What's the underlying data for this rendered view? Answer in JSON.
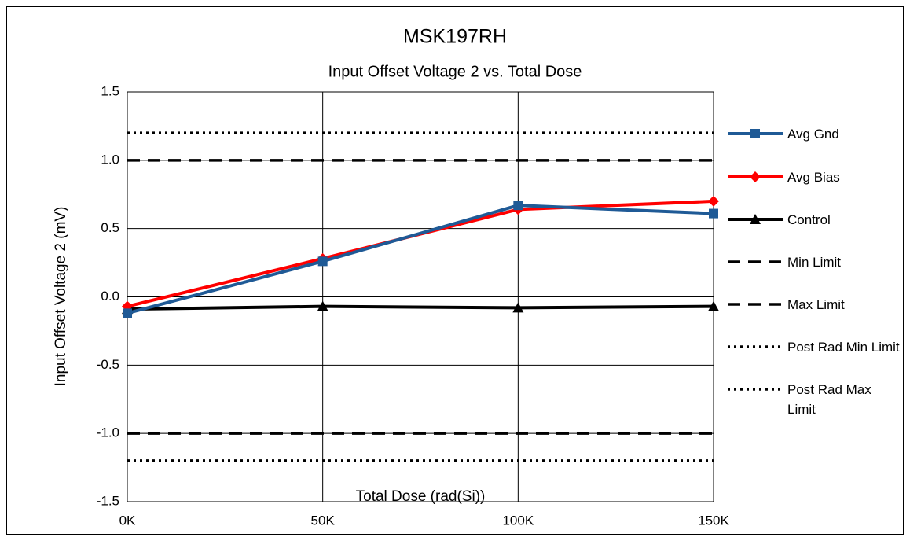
{
  "chart_data": {
    "type": "line",
    "title": "MSK197RH",
    "subtitle": "Input Offset Voltage 2 vs. Total Dose",
    "x_label": "Total Dose (rad(Si))",
    "y_label": "Input Offset Voltage 2 (mV)",
    "categories": [
      "0K",
      "50K",
      "100K",
      "150K"
    ],
    "series": [
      {
        "name": "Avg Gnd",
        "color": "#1f5a96",
        "marker": "square",
        "dash": "solid",
        "values": [
          -0.12,
          0.26,
          0.67,
          0.61
        ]
      },
      {
        "name": "Avg Bias",
        "color": "#ff0000",
        "marker": "diamond",
        "dash": "solid",
        "values": [
          -0.07,
          0.28,
          0.64,
          0.7
        ]
      },
      {
        "name": "Control",
        "color": "#000000",
        "marker": "triangle",
        "dash": "solid",
        "values": [
          -0.09,
          -0.07,
          -0.08,
          -0.07
        ]
      },
      {
        "name": "Min Limit",
        "color": "#000000",
        "marker": "none",
        "dash": "dashed",
        "values": [
          -1,
          -1,
          -1,
          -1
        ]
      },
      {
        "name": "Max Limit",
        "color": "#000000",
        "marker": "none",
        "dash": "dashed",
        "values": [
          1,
          1,
          1,
          1
        ]
      },
      {
        "name": "Post Rad Min Limit",
        "color": "#000000",
        "marker": "none",
        "dash": "dotted",
        "values": [
          -1.2,
          -1.2,
          -1.2,
          -1.2
        ]
      },
      {
        "name": "Post Rad Max Limit",
        "color": "#000000",
        "marker": "none",
        "dash": "dotted",
        "values": [
          1.2,
          1.2,
          1.2,
          1.2
        ]
      }
    ],
    "ylim": [
      -1.5,
      1.5
    ],
    "yticks": [
      -1.5,
      {
        "value": -1,
        "label": "-1.0"
      },
      -0.5,
      {
        "value": 0,
        "label": "0.0"
      },
      0.5,
      {
        "value": 1,
        "label": "1.0"
      },
      1.5
    ],
    "grid": true,
    "legend": "right"
  }
}
